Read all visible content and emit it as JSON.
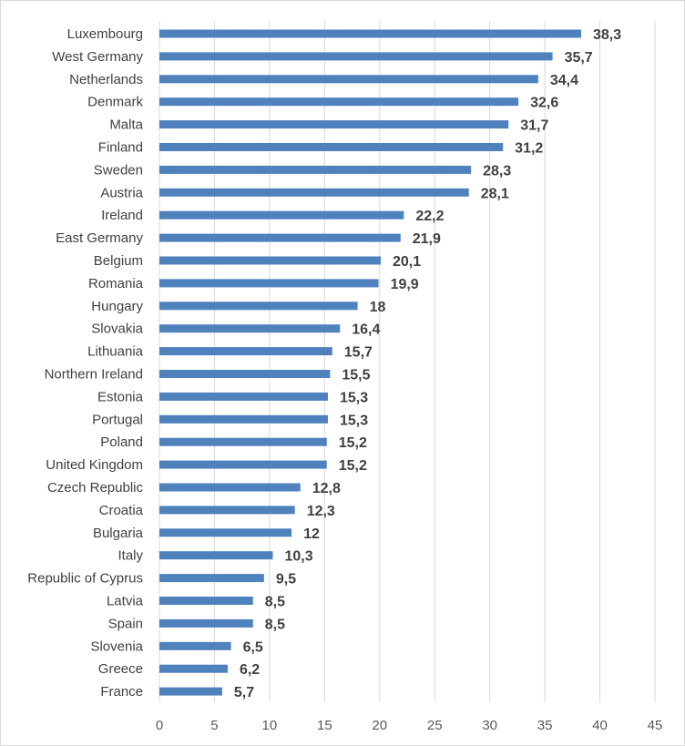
{
  "chart_data": {
    "type": "bar",
    "orientation": "horizontal",
    "categories": [
      "Luxembourg",
      "West Germany",
      "Netherlands",
      "Denmark",
      "Malta",
      "Finland",
      "Sweden",
      "Austria",
      "Ireland",
      "East Germany",
      "Belgium",
      "Romania",
      "Hungary",
      "Slovakia",
      "Lithuania",
      "Northern Ireland",
      "Estonia",
      "Portugal",
      "Poland",
      "United Kingdom",
      "Czech Republic",
      "Croatia",
      "Bulgaria",
      "Italy",
      "Republic of Cyprus",
      "Latvia",
      "Spain",
      "Slovenia",
      "Greece",
      "France"
    ],
    "values": [
      38.3,
      35.7,
      34.4,
      32.6,
      31.7,
      31.2,
      28.3,
      28.1,
      22.2,
      21.9,
      20.1,
      19.9,
      18,
      16.4,
      15.7,
      15.5,
      15.3,
      15.3,
      15.2,
      15.2,
      12.8,
      12.3,
      12,
      10.3,
      9.5,
      8.5,
      8.5,
      6.5,
      6.2,
      5.7
    ],
    "value_labels": [
      "38,3",
      "35,7",
      "34,4",
      "32,6",
      "31,7",
      "31,2",
      "28,3",
      "28,1",
      "22,2",
      "21,9",
      "20,1",
      "19,9",
      "18",
      "16,4",
      "15,7",
      "15,5",
      "15,3",
      "15,3",
      "15,2",
      "15,2",
      "12,8",
      "12,3",
      "12",
      "10,3",
      "9,5",
      "8,5",
      "8,5",
      "6,5",
      "6,2",
      "5,7"
    ],
    "x_ticks": [
      "0",
      "5",
      "10",
      "15",
      "20",
      "25",
      "30",
      "35",
      "40",
      "45"
    ],
    "xlim": [
      0,
      45
    ],
    "title": "",
    "xlabel": "",
    "ylabel": "",
    "grid": "vertical gridlines",
    "legend": "none",
    "bar_color": "#4f81bd",
    "grid_color": "#d9d9d9"
  }
}
